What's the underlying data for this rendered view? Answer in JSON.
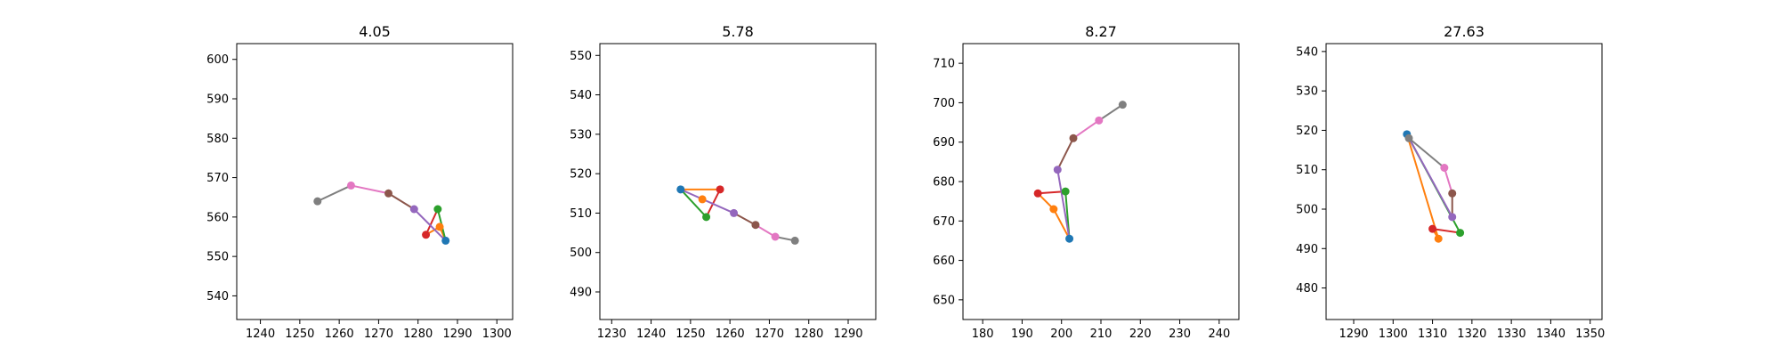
{
  "colors": [
    "#1f77b4",
    "#ff7f0e",
    "#2ca02c",
    "#d62728",
    "#9467bd",
    "#8c564b",
    "#e377c2",
    "#7f7f7f"
  ],
  "chart_data": [
    {
      "type": "line",
      "title": "4.05",
      "xlabel": "",
      "ylabel": "",
      "xlim": [
        1234,
        1304
      ],
      "ylim": [
        534,
        604
      ],
      "xticks": [
        1240,
        1250,
        1260,
        1270,
        1280,
        1290,
        1300
      ],
      "yticks": [
        540,
        550,
        560,
        570,
        580,
        590,
        600
      ],
      "grid": false,
      "points": [
        {
          "x": 1287,
          "y": 554
        },
        {
          "x": 1285.5,
          "y": 557.5
        },
        {
          "x": 1285,
          "y": 562
        },
        {
          "x": 1282,
          "y": 555.5
        },
        {
          "x": 1279,
          "y": 562
        },
        {
          "x": 1272.5,
          "y": 566
        },
        {
          "x": 1263,
          "y": 568
        },
        {
          "x": 1254.5,
          "y": 564
        }
      ],
      "edges": [
        {
          "from": 0,
          "to": 1,
          "color": 1
        },
        {
          "from": 1,
          "to": 3,
          "color": 1
        },
        {
          "from": 0,
          "to": 2,
          "color": 2
        },
        {
          "from": 2,
          "to": 3,
          "color": 3
        },
        {
          "from": 0,
          "to": 4,
          "color": 4
        },
        {
          "from": 4,
          "to": 5,
          "color": 5
        },
        {
          "from": 5,
          "to": 6,
          "color": 6
        },
        {
          "from": 6,
          "to": 7,
          "color": 7
        }
      ]
    },
    {
      "type": "line",
      "title": "5.78",
      "xlabel": "",
      "ylabel": "",
      "xlim": [
        1227,
        1297
      ],
      "ylim": [
        483,
        553
      ],
      "xticks": [
        1230,
        1240,
        1250,
        1260,
        1270,
        1280,
        1290
      ],
      "yticks": [
        490,
        500,
        510,
        520,
        530,
        540,
        550
      ],
      "grid": false,
      "points": [
        {
          "x": 1247.5,
          "y": 516
        },
        {
          "x": 1253,
          "y": 513.5
        },
        {
          "x": 1254,
          "y": 509
        },
        {
          "x": 1257.5,
          "y": 516
        },
        {
          "x": 1261,
          "y": 510
        },
        {
          "x": 1266.5,
          "y": 507
        },
        {
          "x": 1271.5,
          "y": 504
        },
        {
          "x": 1276.5,
          "y": 503
        }
      ],
      "edges": [
        {
          "from": 0,
          "to": 3,
          "color": 1
        },
        {
          "from": 0,
          "to": 2,
          "color": 2
        },
        {
          "from": 2,
          "to": 3,
          "color": 3
        },
        {
          "from": 0,
          "to": 4,
          "color": 4
        },
        {
          "from": 4,
          "to": 5,
          "color": 5
        },
        {
          "from": 5,
          "to": 6,
          "color": 6
        },
        {
          "from": 6,
          "to": 7,
          "color": 7
        }
      ]
    },
    {
      "type": "line",
      "title": "8.27",
      "xlabel": "",
      "ylabel": "",
      "xlim": [
        175,
        245
      ],
      "ylim": [
        645,
        715
      ],
      "xticks": [
        180,
        190,
        200,
        210,
        220,
        230,
        240
      ],
      "yticks": [
        650,
        660,
        670,
        680,
        690,
        700,
        710
      ],
      "grid": false,
      "points": [
        {
          "x": 202,
          "y": 665.5
        },
        {
          "x": 198,
          "y": 673
        },
        {
          "x": 201,
          "y": 677.5
        },
        {
          "x": 194,
          "y": 677
        },
        {
          "x": 199,
          "y": 683
        },
        {
          "x": 203,
          "y": 691
        },
        {
          "x": 209.5,
          "y": 695.5
        },
        {
          "x": 215.5,
          "y": 699.5
        }
      ],
      "edges": [
        {
          "from": 0,
          "to": 1,
          "color": 1
        },
        {
          "from": 1,
          "to": 3,
          "color": 1
        },
        {
          "from": 0,
          "to": 2,
          "color": 2
        },
        {
          "from": 2,
          "to": 3,
          "color": 3
        },
        {
          "from": 0,
          "to": 4,
          "color": 4
        },
        {
          "from": 4,
          "to": 5,
          "color": 5
        },
        {
          "from": 5,
          "to": 6,
          "color": 6
        },
        {
          "from": 6,
          "to": 7,
          "color": 7
        }
      ]
    },
    {
      "type": "line",
      "title": "27.63",
      "xlabel": "",
      "ylabel": "",
      "xlim": [
        1283,
        1353
      ],
      "ylim": [
        472,
        542
      ],
      "xticks": [
        1290,
        1300,
        1310,
        1320,
        1330,
        1340,
        1350
      ],
      "yticks": [
        480,
        490,
        500,
        510,
        520,
        530,
        540
      ],
      "grid": false,
      "points": [
        {
          "x": 1303.5,
          "y": 519
        },
        {
          "x": 1311.5,
          "y": 492.5
        },
        {
          "x": 1317,
          "y": 494
        },
        {
          "x": 1310,
          "y": 495
        },
        {
          "x": 1315,
          "y": 498
        },
        {
          "x": 1315,
          "y": 504
        },
        {
          "x": 1313,
          "y": 510.5
        },
        {
          "x": 1304,
          "y": 518
        }
      ],
      "edges": [
        {
          "from": 0,
          "to": 1,
          "color": 1
        },
        {
          "from": 1,
          "to": 3,
          "color": 1
        },
        {
          "from": 0,
          "to": 2,
          "color": 2
        },
        {
          "from": 2,
          "to": 3,
          "color": 3
        },
        {
          "from": 0,
          "to": 4,
          "color": 4
        },
        {
          "from": 4,
          "to": 5,
          "color": 5
        },
        {
          "from": 5,
          "to": 6,
          "color": 6
        },
        {
          "from": 6,
          "to": 7,
          "color": 7
        }
      ]
    }
  ]
}
